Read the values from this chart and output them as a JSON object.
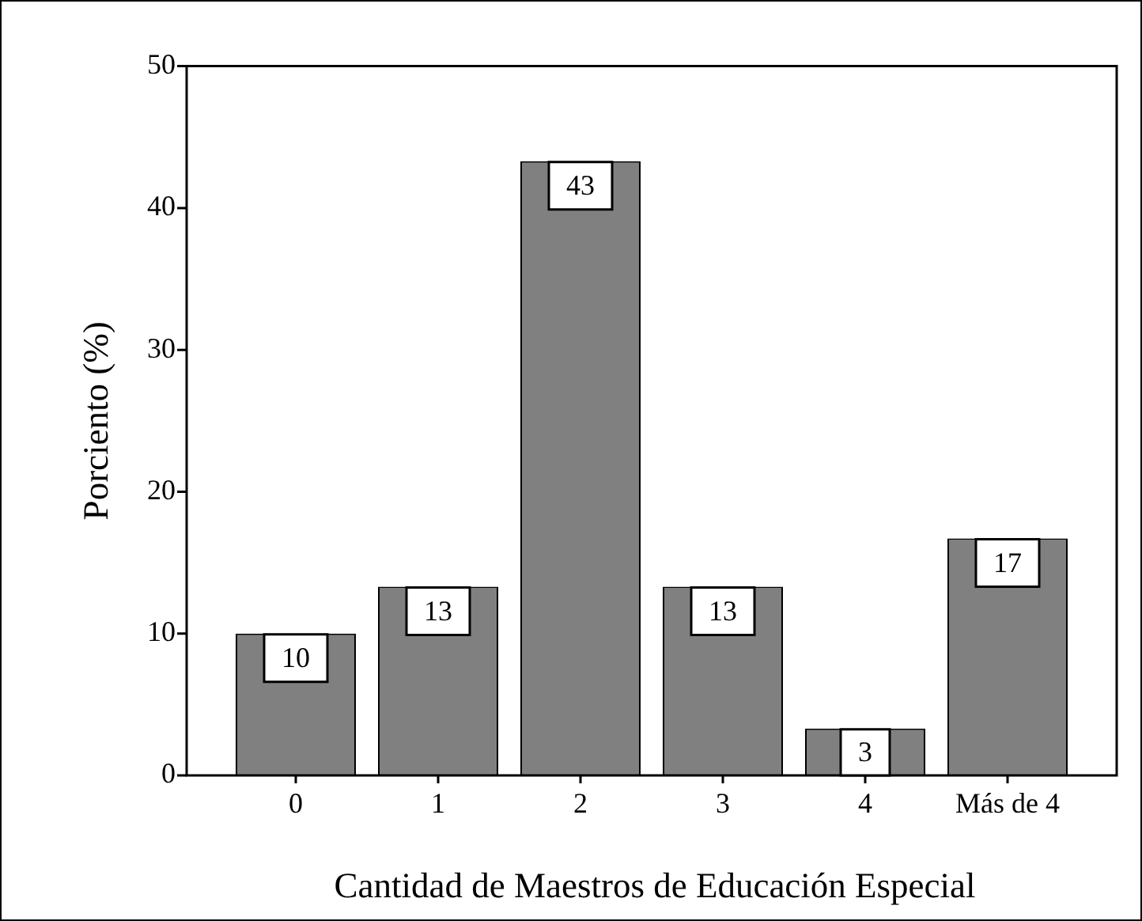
{
  "chart_data": {
    "type": "bar",
    "xlabel": "Cantidad de Maestros de Educación Especial",
    "ylabel": "Porciento (%)",
    "categories": [
      "0",
      "1",
      "2",
      "3",
      "4",
      "Más de 4"
    ],
    "values": [
      10,
      13.3,
      43.3,
      13.3,
      3.3,
      16.7
    ],
    "value_labels": [
      "10",
      "13",
      "43",
      "13",
      "3",
      "17"
    ],
    "color": "#808080",
    "ylim": [
      0,
      50
    ],
    "yticks": [
      0,
      10,
      20,
      30,
      40,
      50
    ]
  }
}
